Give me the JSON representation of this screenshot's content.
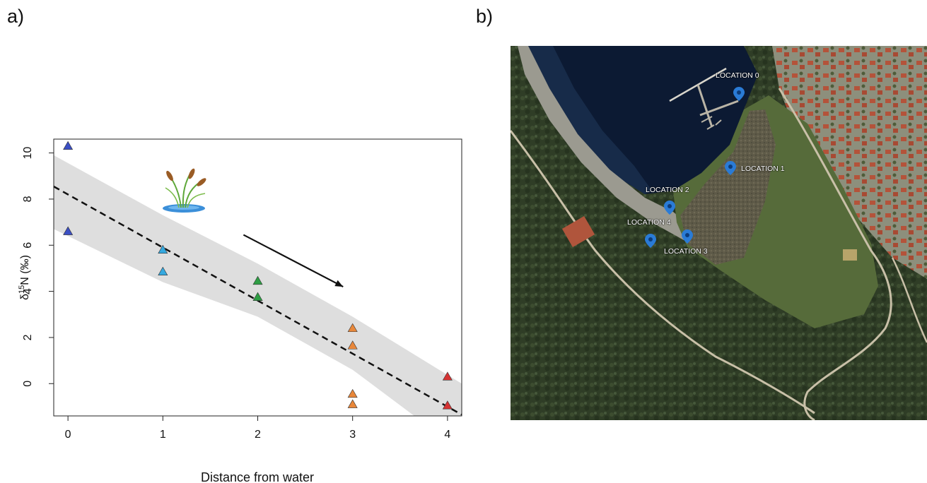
{
  "panels": {
    "a_label": "a)",
    "b_label": "b)"
  },
  "chart_data": {
    "type": "scatter",
    "xlabel": "Distance from water",
    "ylabel_prefix": "δ",
    "ylabel_sup": "15",
    "ylabel_suffix": "N (‰)",
    "xlim": [
      -0.15,
      4.15
    ],
    "ylim": [
      -1.4,
      10.6
    ],
    "x_ticks": [
      0,
      1,
      2,
      3,
      4
    ],
    "y_ticks": [
      0,
      2,
      4,
      6,
      8,
      10
    ],
    "grid": false,
    "points": [
      {
        "x": 0,
        "y": 10.3,
        "color": "#3b4fc4"
      },
      {
        "x": 0,
        "y": 6.6,
        "color": "#3b4fc4"
      },
      {
        "x": 1,
        "y": 5.8,
        "color": "#35a9e0"
      },
      {
        "x": 1,
        "y": 4.85,
        "color": "#35a9e0"
      },
      {
        "x": 2,
        "y": 4.45,
        "color": "#2e9e44"
      },
      {
        "x": 2,
        "y": 3.75,
        "color": "#2e9e44"
      },
      {
        "x": 3,
        "y": 2.4,
        "color": "#e8873a"
      },
      {
        "x": 3,
        "y": 1.65,
        "color": "#e8873a"
      },
      {
        "x": 3,
        "y": -0.45,
        "color": "#e8873a"
      },
      {
        "x": 3,
        "y": -0.9,
        "color": "#e8873a"
      },
      {
        "x": 4,
        "y": 0.3,
        "color": "#d63333"
      },
      {
        "x": 4,
        "y": -0.95,
        "color": "#d63333"
      }
    ],
    "regression": {
      "intercept": 8.2,
      "slope": -2.3
    },
    "confidence_band": {
      "upper": [
        [
          -0.15,
          9.9
        ],
        [
          1,
          7.3
        ],
        [
          2,
          5.2
        ],
        [
          3,
          2.9
        ],
        [
          4.15,
          0.0
        ]
      ],
      "lower": [
        [
          -0.15,
          6.7
        ],
        [
          1,
          4.4
        ],
        [
          2,
          2.9
        ],
        [
          3,
          0.6
        ],
        [
          3.65,
          -1.4
        ],
        [
          4.15,
          -1.4
        ]
      ]
    },
    "arrow": {
      "from": [
        1.85,
        6.45
      ],
      "to": [
        2.9,
        4.2
      ]
    }
  },
  "map": {
    "locations": [
      {
        "label": "LOCATION 0"
      },
      {
        "label": "LOCATION 1"
      },
      {
        "label": "LOCATION 2"
      },
      {
        "label": "LOCATION 4"
      },
      {
        "label": "LOCATION 3"
      }
    ]
  }
}
